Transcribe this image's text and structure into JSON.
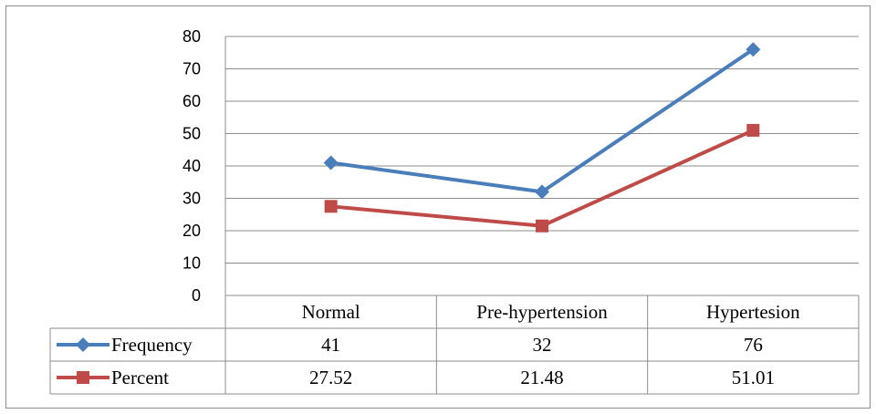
{
  "chart_data": {
    "type": "line",
    "title": "",
    "xlabel": "",
    "ylabel": "",
    "categories": [
      "Normal",
      "Pre-hypertension",
      "Hypertesion"
    ],
    "ylim": [
      0,
      80
    ],
    "yticks": [
      "0",
      "10",
      "20",
      "30",
      "40",
      "50",
      "60",
      "70",
      "80"
    ],
    "grid": true,
    "legend": "data-table",
    "series": [
      {
        "name": "Frequency",
        "values": [
          41,
          32,
          76
        ],
        "labels": [
          "41",
          "32",
          "76"
        ],
        "color": "#4a7ebb",
        "marker": "diamond"
      },
      {
        "name": "Percent",
        "values": [
          27.52,
          21.48,
          51.01
        ],
        "labels": [
          "27.52",
          "21.48",
          "51.01"
        ],
        "color": "#be4b48",
        "marker": "square"
      }
    ]
  }
}
